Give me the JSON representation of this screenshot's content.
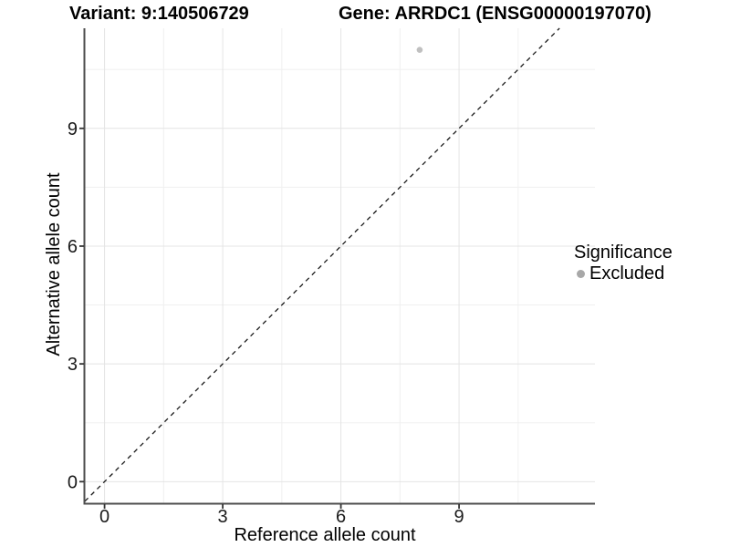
{
  "chart_data": {
    "type": "scatter",
    "title_left": "Variant: 9:140506729",
    "title_right": "Gene: ARRDC1 (ENSG00000197070)",
    "xlabel": "Reference allele count",
    "ylabel": "Alternative allele count",
    "xlim": [
      -0.5,
      12.45
    ],
    "ylim": [
      -0.55,
      11.55
    ],
    "x_ticks": [
      0,
      3,
      6,
      9
    ],
    "y_ticks": [
      0,
      3,
      6,
      9
    ],
    "x_minor": [
      1.5,
      4.5,
      7.5,
      10.5
    ],
    "y_minor": [
      1.5,
      4.5,
      7.5,
      10.5
    ],
    "grid": true,
    "points": [
      {
        "x": 8,
        "y": 11,
        "significance": "Excluded",
        "color": "#c0c0c0",
        "radius": 3.3
      }
    ],
    "identity_line": {
      "type": "y=x",
      "style": "dashed",
      "color": "#1a1a1a"
    },
    "legend": {
      "title": "Significance",
      "position": "right",
      "items": [
        {
          "label": "Excluded",
          "color": "#a8a8a8",
          "marker": "circle"
        }
      ]
    },
    "colors": {
      "grid_major": "#e4e4e4",
      "grid_minor": "#f0f0f0",
      "axis_line": "#4d4d4d",
      "tick": "#333333",
      "tick_label": "#1a1a1a"
    }
  }
}
